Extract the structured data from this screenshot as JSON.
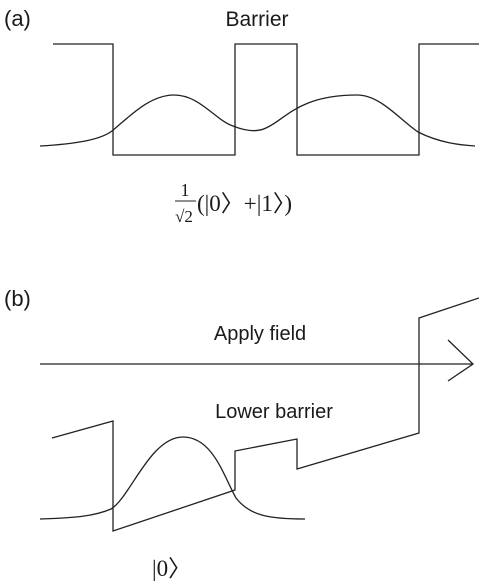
{
  "panel_a": {
    "label": "(a)",
    "title": "Barrier",
    "state": {
      "prefix_numerator": "1",
      "prefix_denominator": "√2",
      "ket_sum": "(|0〉+|1〉)"
    }
  },
  "panel_b": {
    "label": "(b)",
    "arrow_label": "Apply field",
    "barrier_label": "Lower barrier",
    "state": "|0〉"
  },
  "colors": {
    "ink": "#222222",
    "background": "#ffffff"
  }
}
